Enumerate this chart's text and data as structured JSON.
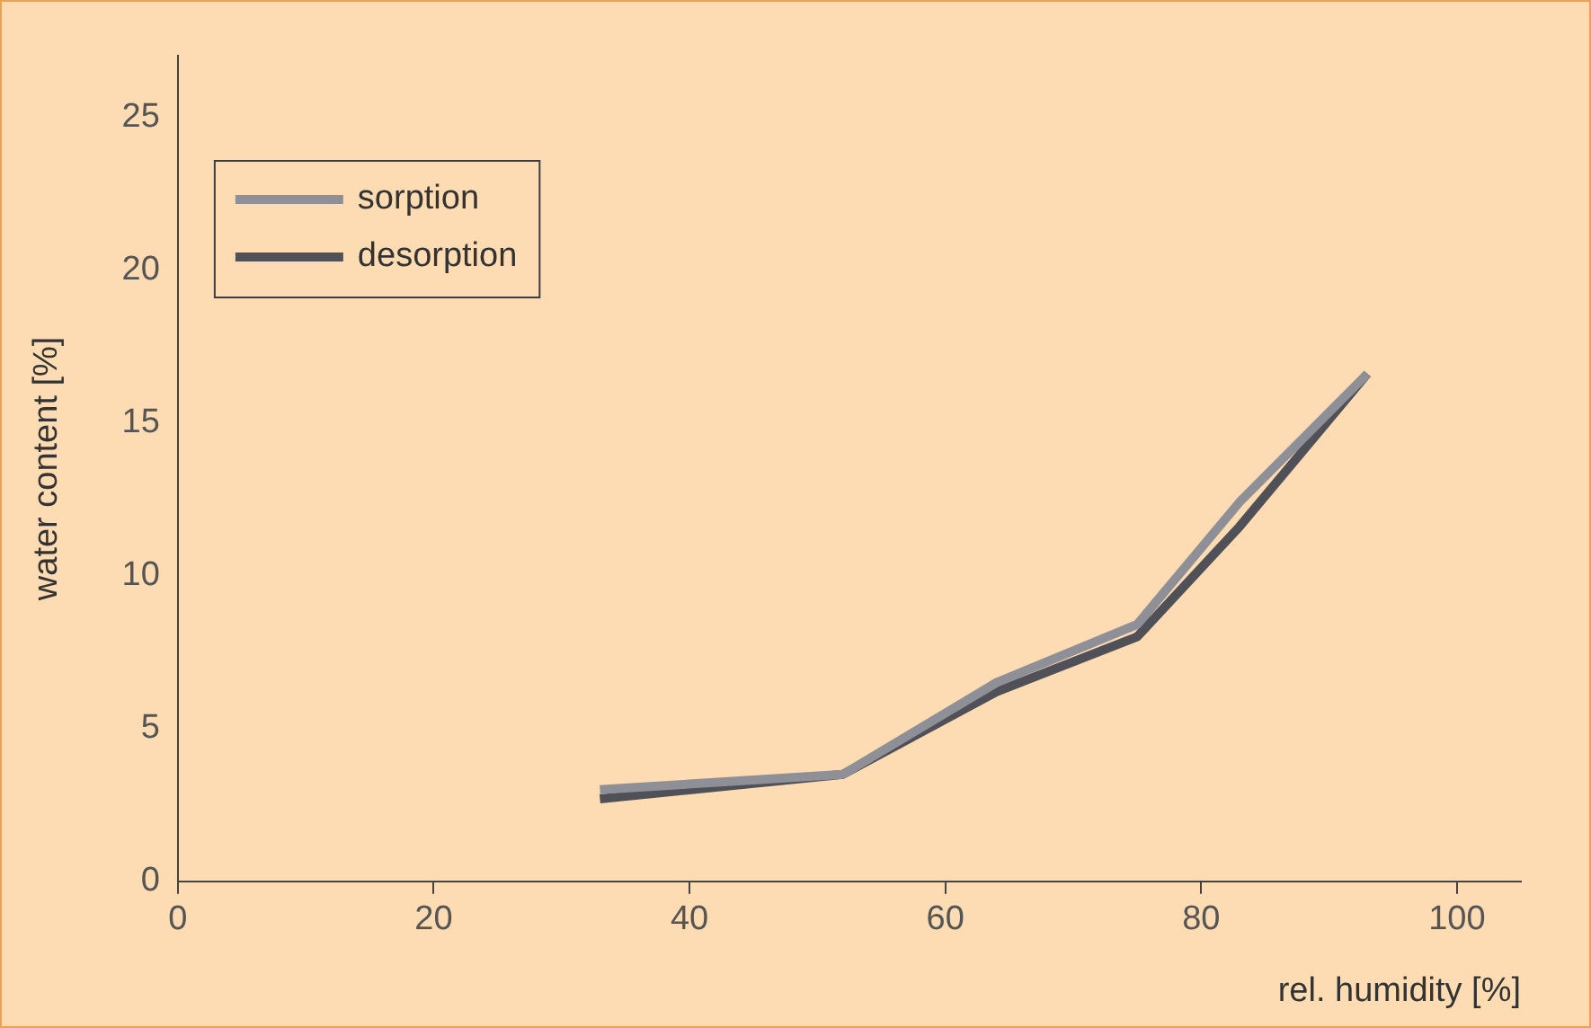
{
  "chart_data": {
    "type": "line",
    "xlabel": "rel. humidity [%]",
    "ylabel": "water content [%]",
    "x": [
      33,
      52,
      64,
      75,
      83,
      93
    ],
    "series": [
      {
        "name": "sorption",
        "color": "#8e8f97",
        "values": [
          3.0,
          3.5,
          6.5,
          8.4,
          12.4,
          16.6
        ]
      },
      {
        "name": "desorption",
        "color": "#4f5058",
        "values": [
          2.7,
          3.5,
          6.2,
          8.0,
          11.6,
          16.6
        ]
      }
    ],
    "xlim": [
      0,
      105
    ],
    "ylim": [
      0,
      27
    ],
    "xticks": [
      0,
      20,
      40,
      60,
      80,
      100
    ],
    "yticks": [
      0,
      5,
      10,
      15,
      20,
      25
    ],
    "grid": false,
    "legend": "top left",
    "marker": "none",
    "line_style": "solid"
  }
}
